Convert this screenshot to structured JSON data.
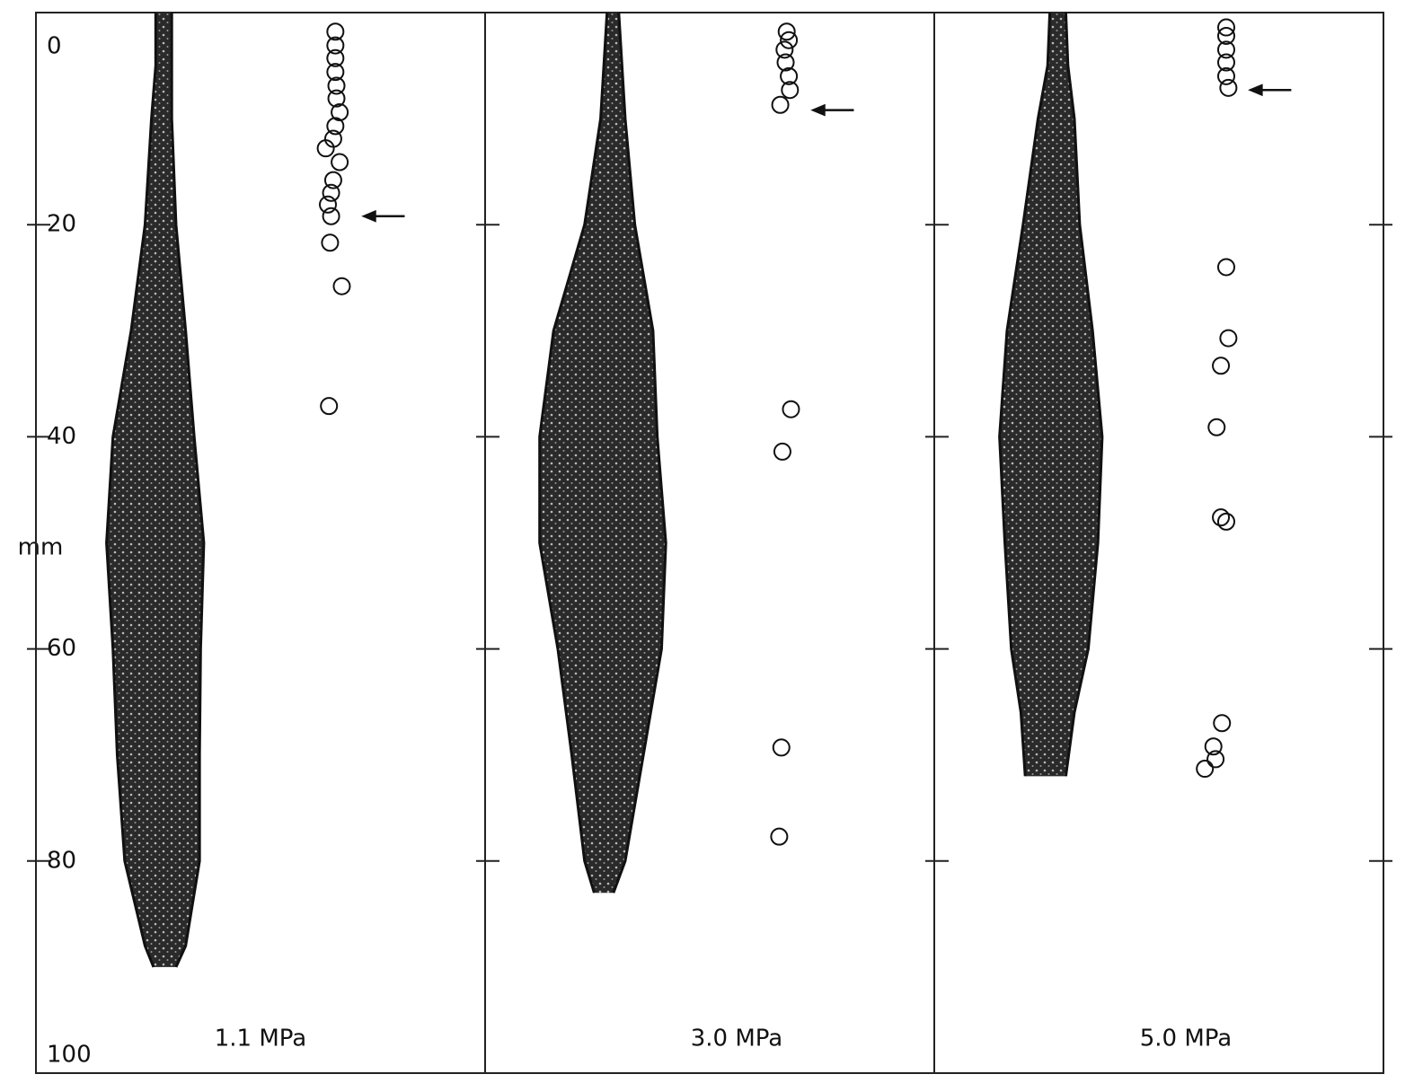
{
  "chart_data": {
    "type": "scatter",
    "ylabel": "mm",
    "ylim": [
      0,
      100
    ],
    "yticks": [
      0,
      20,
      40,
      60,
      80,
      100
    ],
    "xlim": [
      0,
      42
    ],
    "panels": [
      {
        "label": "1.1 MPa",
        "spray": {
          "depth": [
            0,
            5,
            10,
            20,
            30,
            40,
            50,
            60,
            70,
            80,
            88,
            90
          ],
          "left": [
            11.2,
            11.2,
            10.8,
            10.2,
            8.9,
            7.2,
            6.6,
            7.2,
            7.6,
            8.3,
            10.2,
            11.0
          ],
          "right": [
            12.7,
            12.7,
            12.7,
            13.1,
            14.0,
            14.8,
            15.7,
            15.4,
            15.3,
            15.3,
            14.0,
            13.1
          ]
        },
        "drops": {
          "x": [
            28.0,
            28.0,
            28.0,
            28.0,
            28.1,
            28.1,
            28.4,
            28.0,
            27.8,
            27.1,
            28.4,
            27.8,
            27.6,
            27.3,
            27.6,
            27.5,
            28.6,
            27.4
          ],
          "y": [
            1.8,
            3.1,
            4.3,
            5.6,
            6.9,
            8.1,
            9.4,
            10.7,
            11.9,
            12.8,
            14.1,
            15.8,
            17.0,
            18.1,
            19.2,
            21.7,
            25.8,
            37.1
          ]
        },
        "arrow": 19.2
      },
      {
        "label": "3.0 MPa",
        "spray": {
          "depth": [
            0,
            10,
            20,
            30,
            40,
            50,
            60,
            70,
            80,
            83
          ],
          "left": [
            11.4,
            10.8,
            9.3,
            6.4,
            5.1,
            5.1,
            6.8,
            8.1,
            9.3,
            10.2
          ],
          "right": [
            12.5,
            13.1,
            14.0,
            15.7,
            16.1,
            16.9,
            16.5,
            14.8,
            13.1,
            12.0
          ]
        },
        "drops": {
          "x": [
            28.2,
            28.4,
            28.0,
            28.1,
            28.4,
            28.5,
            27.6,
            28.6,
            27.8,
            27.7,
            27.5
          ],
          "y": [
            1.8,
            2.6,
            3.5,
            4.7,
            6.0,
            7.3,
            8.7,
            37.4,
            41.4,
            69.3,
            77.7
          ]
        },
        "arrow": 9.2
      },
      {
        "label": "5.0 MPa",
        "spray": {
          "depth": [
            0,
            5,
            10,
            20,
            30,
            40,
            50,
            60,
            66,
            72
          ],
          "left": [
            10.8,
            10.6,
            9.7,
            8.3,
            6.8,
            6.1,
            6.6,
            7.2,
            8.1,
            8.5
          ],
          "right": [
            12.3,
            12.5,
            13.1,
            13.6,
            14.8,
            15.7,
            15.3,
            14.4,
            13.1,
            12.3
          ]
        },
        "drops": {
          "x": [
            27.3,
            27.3,
            27.3,
            27.3,
            27.3,
            27.5,
            27.3,
            27.5,
            26.8,
            26.4,
            26.8,
            27.3,
            26.9,
            26.1,
            25.3,
            26.3
          ],
          "y": [
            1.4,
            2.2,
            3.5,
            4.7,
            6.0,
            7.1,
            24.0,
            30.7,
            33.3,
            39.1,
            47.6,
            48.0,
            67.0,
            69.2,
            71.3,
            70.4
          ]
        },
        "arrow": 7.3
      }
    ]
  }
}
